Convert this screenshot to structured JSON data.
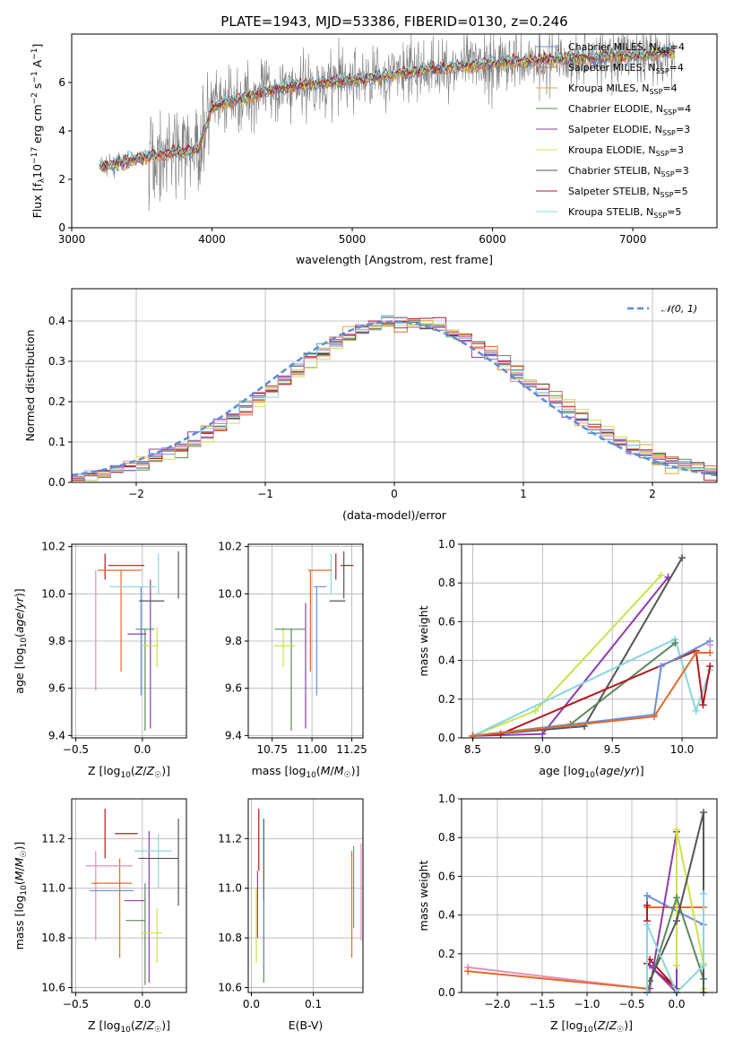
{
  "colors": {
    "chabrier_miles": "#6b8fd6",
    "salpeter_miles": "#e36b2c",
    "kroupa_miles": "#e0a83c",
    "chabrier_elodie": "#5c8a5c",
    "salpeter_elodie": "#8e3bb0",
    "kroupa_elodie": "#cfe04e",
    "chabrier_stelib": "#555555",
    "salpeter_stelib": "#b0191f",
    "kroupa_stelib": "#86d7e0",
    "pink": "#e58ec0",
    "grid": "#b0b0b0",
    "spectrum": "#7f7f7f"
  },
  "chart_data": [
    {
      "type": "line",
      "title": "PLATE=1943, MJD=53386, FIBERID=0130, z=0.246",
      "xlabel": "wavelength [Angstrom, rest frame]",
      "ylabel": "Flux [f_λ 10^-17 erg cm^-2 s^-1 A^-1]",
      "xlim": [
        3000,
        7600
      ],
      "ylim": [
        0,
        8
      ],
      "xticks": [
        "3000",
        "4000",
        "5000",
        "6000",
        "7000"
      ],
      "yticks": [
        "0",
        "2",
        "4",
        "6"
      ],
      "grid": false,
      "legend_position": "top-right",
      "legend": [
        {
          "label": "Chabrier MILES, N_SSP=4",
          "main": "Chabrier MILES, N",
          "sub": "SSP",
          "post": "=4",
          "color": "chabrier_miles"
        },
        {
          "label": "Salpeter MILES, N_SSP=4",
          "main": "Salpeter MILES, N",
          "sub": "SSP",
          "post": "=4",
          "color": "salpeter_miles"
        },
        {
          "label": "Kroupa MILES, N_SSP=4",
          "main": "Kroupa MILES, N",
          "sub": "SSP",
          "post": "=4",
          "color": "kroupa_miles"
        },
        {
          "label": "Chabrier ELODIE, N_SSP=4",
          "main": "Chabrier ELODIE, N",
          "sub": "SSP",
          "post": "=4",
          "color": "chabrier_elodie"
        },
        {
          "label": "Salpeter ELODIE, N_SSP=3",
          "main": "Salpeter ELODIE, N",
          "sub": "SSP",
          "post": "=3",
          "color": "salpeter_elodie"
        },
        {
          "label": "Kroupa ELODIE, N_SSP=3",
          "main": "Kroupa ELODIE, N",
          "sub": "SSP",
          "post": "=3",
          "color": "kroupa_elodie"
        },
        {
          "label": "Chabrier STELIB, N_SSP=3",
          "main": "Chabrier STELIB, N",
          "sub": "SSP",
          "post": "=3",
          "color": "chabrier_stelib"
        },
        {
          "label": "Salpeter STELIB, N_SSP=5",
          "main": "Salpeter STELIB, N",
          "sub": "SSP",
          "post": "=5",
          "color": "salpeter_stelib"
        },
        {
          "label": "Kroupa STELIB, N_SSP=5",
          "main": "Kroupa STELIB, N",
          "sub": "SSP",
          "post": "=5",
          "color": "kroupa_stelib"
        }
      ],
      "continuum": [
        [
          3200,
          2.5
        ],
        [
          3500,
          2.9
        ],
        [
          3700,
          3.1
        ],
        [
          3900,
          3.2
        ],
        [
          4000,
          5.0
        ],
        [
          4300,
          5.5
        ],
        [
          4500,
          5.8
        ],
        [
          5000,
          6.1
        ],
        [
          5500,
          6.5
        ],
        [
          6000,
          6.8
        ],
        [
          6500,
          7.0
        ],
        [
          7000,
          7.1
        ],
        [
          7300,
          7.3
        ]
      ]
    },
    {
      "type": "line",
      "xlabel": "(data-model)/error",
      "ylabel": "Normed distribution",
      "xlim": [
        -2.5,
        2.5
      ],
      "ylim": [
        0,
        0.48
      ],
      "xticks": [
        "−2",
        "−1",
        "0",
        "1",
        "2"
      ],
      "yticks": [
        "0.0",
        "0.1",
        "0.2",
        "0.3",
        "0.4"
      ],
      "grid": true,
      "legend_position": "top-right",
      "legend_label": "N(0,1)",
      "bin_width": 0.1,
      "series_offsets": [
        0.02,
        -0.02,
        0.03,
        -0.015,
        0.025,
        -0.03,
        0.015,
        -0.01,
        0.035
      ]
    },
    {
      "type": "scatter",
      "xlabel": "Z [log10(Z/Z☉)]",
      "ylabel": "age [log10(age/yr)]",
      "xlim": [
        -0.53,
        0.33
      ],
      "ylim": [
        9.39,
        10.21
      ],
      "xticks": [
        "−0.5",
        "0.0"
      ],
      "yticks": [
        "9.4",
        "9.6",
        "9.8",
        "10.0",
        "10.2"
      ],
      "points": [
        {
          "color": "salpeter_miles",
          "x": -0.17,
          "xe": 0.33,
          "y": 10.1,
          "ye": 0.0
        },
        {
          "color": "salpeter_stelib",
          "x": -0.12,
          "xe": 0.27,
          "y": 10.12,
          "ye": 0.0
        },
        {
          "color": "kroupa_stelib",
          "x": -0.07,
          "xe": 0.35,
          "y": 10.03,
          "ye": 0.0
        },
        {
          "color": "chabrier_stelib",
          "x": 0.07,
          "xe": 0.19,
          "y": 9.97,
          "ye": 0.0
        },
        {
          "color": "chabrier_elodie",
          "x": 0.02,
          "xe": 0.14,
          "y": 9.85,
          "ye": 0.0
        },
        {
          "color": "salpeter_elodie",
          "x": -0.04,
          "xe": 0.14,
          "y": 9.83,
          "ye": 0.0
        },
        {
          "color": "kroupa_elodie",
          "x": 0.06,
          "xe": 0.12,
          "y": 9.78,
          "ye": 0.0
        }
      ],
      "vlines": [
        {
          "color": "pink",
          "x": -0.35,
          "y0": 9.59,
          "y1": 10.1
        },
        {
          "color": "salpeter_miles",
          "x": -0.16,
          "y0": 9.67,
          "y1": 10.1
        },
        {
          "color": "chabrier_elodie",
          "x": 0.02,
          "y0": 9.42,
          "y1": 9.85
        },
        {
          "color": "chabrier_miles",
          "x": -0.01,
          "y0": 9.57,
          "y1": 10.03
        },
        {
          "color": "salpeter_elodie",
          "x": 0.06,
          "y0": 9.43,
          "y1": 10.06
        },
        {
          "color": "kroupa_elodie",
          "x": 0.11,
          "y0": 9.69,
          "y1": 9.86
        },
        {
          "color": "kroupa_stelib",
          "x": 0.12,
          "y0": 10.0,
          "y1": 10.17
        },
        {
          "color": "chabrier_stelib",
          "x": 0.27,
          "y0": 9.98,
          "y1": 10.18
        },
        {
          "color": "salpeter_stelib",
          "x": -0.28,
          "y0": 10.06,
          "y1": 10.17
        }
      ]
    },
    {
      "type": "scatter",
      "xlabel": "mass [log10(M/M☉)]",
      "xlim": [
        10.6,
        11.32
      ],
      "ylim": [
        9.39,
        10.21
      ],
      "xticks": [
        "10.75",
        "11.00",
        "11.25"
      ],
      "yticks": [
        "9.4",
        "9.6",
        "9.8",
        "10.0",
        "10.2"
      ],
      "points": [
        {
          "color": "salpeter_miles",
          "x": 11.05,
          "xe": 0.15,
          "y": 10.1
        },
        {
          "color": "salpeter_stelib",
          "x": 11.22,
          "xe": 0.08,
          "y": 10.12
        },
        {
          "color": "chabrier_miles",
          "x": 11.05,
          "xe": 0.08,
          "y": 10.03
        },
        {
          "color": "chabrier_stelib",
          "x": 11.16,
          "xe": 0.1,
          "y": 9.97
        },
        {
          "color": "chabrier_elodie",
          "x": 10.86,
          "xe": 0.19,
          "y": 9.85
        },
        {
          "color": "kroupa_elodie",
          "x": 10.83,
          "xe": 0.13,
          "y": 9.78
        }
      ],
      "vlines": [
        {
          "color": "kroupa_elodie",
          "x": 10.82,
          "y0": 9.69,
          "y1": 9.86
        },
        {
          "color": "chabrier_elodie",
          "x": 10.87,
          "y0": 9.42,
          "y1": 9.85
        },
        {
          "color": "salpeter_elodie",
          "x": 10.96,
          "y0": 9.43,
          "y1": 9.96
        },
        {
          "color": "chabrier_miles",
          "x": 11.03,
          "y0": 9.57,
          "y1": 10.03
        },
        {
          "color": "salpeter_miles",
          "x": 10.99,
          "y0": 9.67,
          "y1": 10.1
        },
        {
          "color": "salpeter_stelib",
          "x": 11.15,
          "y0": 10.06,
          "y1": 10.17
        },
        {
          "color": "kroupa_stelib",
          "x": 11.12,
          "y0": 10.0,
          "y1": 10.17
        },
        {
          "color": "chabrier_stelib",
          "x": 11.2,
          "y0": 9.98,
          "y1": 10.18
        }
      ]
    },
    {
      "type": "line",
      "xlabel": "age [log10(age/yr)]",
      "ylabel": "mass weight",
      "xlim": [
        8.42,
        10.25
      ],
      "ylim": [
        0,
        1.0
      ],
      "xticks": [
        "8.5",
        "9.0",
        "9.5",
        "10.0"
      ],
      "yticks": [
        "0.0",
        "0.2",
        "0.4",
        "0.6",
        "0.8",
        "1.0"
      ],
      "grid": true,
      "series": [
        {
          "color": "kroupa_elodie",
          "x": [
            8.5,
            8.95,
            9.85
          ],
          "y": [
            0.01,
            0.14,
            0.84
          ]
        },
        {
          "color": "salpeter_elodie",
          "x": [
            8.5,
            9.0,
            9.9
          ],
          "y": [
            0.01,
            0.02,
            0.83
          ]
        },
        {
          "color": "chabrier_stelib",
          "x": [
            8.5,
            9.3,
            10.0
          ],
          "y": [
            0.01,
            0.06,
            0.93
          ]
        },
        {
          "color": "kroupa_stelib",
          "x": [
            8.5,
            9.95,
            10.1,
            10.2
          ],
          "y": [
            0.01,
            0.51,
            0.14,
            0.35
          ]
        },
        {
          "color": "chabrier_elodie",
          "x": [
            8.5,
            9.2,
            9.95
          ],
          "y": [
            0.01,
            0.07,
            0.49
          ]
        },
        {
          "color": "salpeter_stelib",
          "x": [
            8.5,
            8.7,
            10.1,
            10.15,
            10.2
          ],
          "y": [
            0.01,
            0.02,
            0.45,
            0.17,
            0.37
          ]
        },
        {
          "color": "chabrier_miles",
          "x": [
            8.5,
            9.8,
            9.85,
            10.2
          ],
          "y": [
            0.01,
            0.12,
            0.37,
            0.5
          ]
        },
        {
          "color": "salpeter_miles",
          "x": [
            8.5,
            9.8,
            10.1,
            10.2
          ],
          "y": [
            0.01,
            0.11,
            0.44,
            0.44
          ]
        },
        {
          "color": "pink",
          "x": [
            10.2
          ],
          "y": [
            0.48
          ]
        }
      ]
    },
    {
      "type": "scatter",
      "xlabel": "Z [log10(Z/Z☉)]",
      "ylabel": "mass [log10(M/M☉)]",
      "xlim": [
        -0.53,
        0.33
      ],
      "ylim": [
        10.58,
        11.36
      ],
      "xticks": [
        "−0.5",
        "0.0"
      ],
      "yticks": [
        "10.6",
        "10.8",
        "11.0",
        "11.2"
      ],
      "points": [
        {
          "color": "salpeter_stelib",
          "x": -0.12,
          "xe": 0.17,
          "y": 11.22
        },
        {
          "color": "kroupa_stelib",
          "x": 0.08,
          "xe": 0.28,
          "y": 11.15
        },
        {
          "color": "chabrier_stelib",
          "x": 0.12,
          "xe": 0.3,
          "y": 11.12
        },
        {
          "color": "pink",
          "x": -0.25,
          "xe": 0.35,
          "y": 11.09
        },
        {
          "color": "salpeter_miles",
          "x": -0.23,
          "xe": 0.3,
          "y": 11.02
        },
        {
          "color": "chabrier_miles",
          "x": -0.23,
          "xe": 0.33,
          "y": 10.99
        },
        {
          "color": "salpeter_elodie",
          "x": -0.06,
          "xe": 0.15,
          "y": 10.95
        },
        {
          "color": "chabrier_elodie",
          "x": -0.05,
          "xe": 0.15,
          "y": 10.87
        },
        {
          "color": "kroupa_elodie",
          "x": 0.07,
          "xe": 0.16,
          "y": 10.82
        }
      ],
      "vlines": [
        {
          "color": "salpeter_stelib",
          "x": -0.28,
          "y0": 11.12,
          "y1": 11.32
        },
        {
          "color": "pink",
          "x": -0.35,
          "y0": 10.79,
          "y1": 11.15
        },
        {
          "color": "salpeter_miles",
          "x": -0.17,
          "y0": 10.72,
          "y1": 11.12
        },
        {
          "color": "chabrier_elodie",
          "x": 0.02,
          "y0": 10.61,
          "y1": 11.02
        },
        {
          "color": "salpeter_elodie",
          "x": 0.05,
          "y0": 10.62,
          "y1": 11.23
        },
        {
          "color": "kroupa_elodie",
          "x": 0.11,
          "y0": 10.7,
          "y1": 10.92
        },
        {
          "color": "kroupa_stelib",
          "x": 0.12,
          "y0": 11.0,
          "y1": 11.22
        },
        {
          "color": "chabrier_stelib",
          "x": 0.27,
          "y0": 10.93,
          "y1": 11.28
        }
      ]
    },
    {
      "type": "scatter",
      "xlabel": "E(B-V)",
      "xlim": [
        -0.005,
        0.18
      ],
      "ylim": [
        10.58,
        11.36
      ],
      "xticks": [
        "0.0",
        "0.1"
      ],
      "yticks": [
        "10.6",
        "10.8",
        "11.0",
        "11.2"
      ],
      "vlines": [
        {
          "color": "salpeter_stelib",
          "x": 0.012,
          "y0": 11.07,
          "y1": 11.32
        },
        {
          "color": "salpeter_elodie",
          "x": 0.01,
          "y0": 10.8,
          "y1": 11.07
        },
        {
          "color": "kroupa_elodie",
          "x": 0.008,
          "y0": 10.7,
          "y1": 11.0
        },
        {
          "color": "chabrier_stelib",
          "x": 0.02,
          "y0": 10.95,
          "y1": 11.28
        },
        {
          "color": "chabrier_elodie",
          "x": 0.02,
          "y0": 10.62,
          "y1": 11.03
        },
        {
          "color": "salpeter_miles",
          "x": 0.162,
          "y0": 10.72,
          "y1": 11.15
        },
        {
          "color": "chabrier_miles",
          "x": 0.165,
          "y0": 10.84,
          "y1": 11.17
        },
        {
          "color": "pink",
          "x": 0.177,
          "y0": 10.79,
          "y1": 11.18
        }
      ]
    },
    {
      "type": "line",
      "xlabel": "Z [log10(Z/Z☉)]",
      "ylabel": "mass weight",
      "xlim": [
        -2.4,
        0.45
      ],
      "ylim": [
        0,
        1.0
      ],
      "xticks": [
        "−2.0",
        "−1.5",
        "−1.0",
        "−0.5",
        "0.0"
      ],
      "yticks": [
        "0.0",
        "0.2",
        "0.4",
        "0.6",
        "0.8",
        "1.0"
      ],
      "grid": true,
      "series": [
        {
          "color": "pink",
          "x": [
            -2.33,
            -0.33
          ],
          "y": [
            0.13,
            0.02
          ]
        },
        {
          "color": "salpeter_miles",
          "x": [
            -2.33,
            -0.33,
            -0.33,
            0.0,
            0.3
          ],
          "y": [
            0.11,
            0.02,
            0.44,
            0.44,
            0.44
          ]
        },
        {
          "color": "chabrier_miles",
          "x": [
            -0.33,
            -0.33,
            0.3
          ],
          "y": [
            0.0,
            0.5,
            0.35
          ]
        },
        {
          "color": "salpeter_stelib",
          "x": [
            -0.33,
            -0.33,
            -0.33,
            0.0,
            -0.3
          ],
          "y": [
            0.45,
            0.37,
            0.15,
            0.02,
            0.17
          ]
        },
        {
          "color": "salpeter_elodie",
          "x": [
            -0.3,
            0.0,
            0.0,
            -0.3
          ],
          "y": [
            0.02,
            0.83,
            0.0,
            0.14
          ]
        },
        {
          "color": "kroupa_elodie",
          "x": [
            0.0,
            0.0,
            0.3,
            0.3
          ],
          "y": [
            0.14,
            0.84,
            0.15,
            0.02
          ]
        },
        {
          "color": "chabrier_elodie",
          "x": [
            -0.33,
            0.0,
            0.3
          ],
          "y": [
            0.0,
            0.49,
            0.07
          ]
        },
        {
          "color": "chabrier_stelib",
          "x": [
            -0.3,
            0.0,
            0.3,
            0.3
          ],
          "y": [
            0.06,
            0.37,
            0.93,
            0.0
          ]
        },
        {
          "color": "kroupa_stelib",
          "x": [
            -0.33,
            -0.33,
            0.0,
            0.3,
            0.3
          ],
          "y": [
            0.0,
            0.35,
            0.0,
            0.14,
            0.51
          ]
        }
      ]
    }
  ]
}
